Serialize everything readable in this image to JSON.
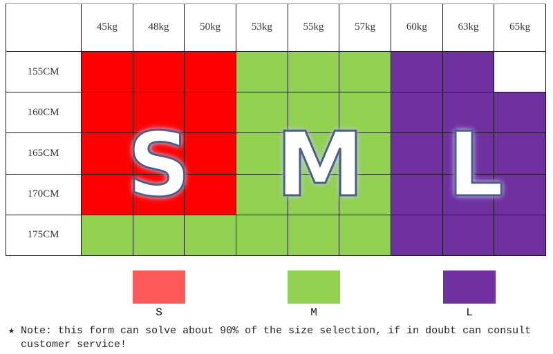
{
  "chart_data": {
    "type": "heatmap",
    "columns": [
      "45kg",
      "48kg",
      "50kg",
      "53kg",
      "55kg",
      "57kg",
      "60kg",
      "63kg",
      "65kg"
    ],
    "rows": [
      "155CM",
      "160CM",
      "165CM",
      "170CM",
      "175CM"
    ],
    "cells": [
      [
        "S",
        "S",
        "S",
        "M",
        "M",
        "M",
        "L",
        "L",
        ""
      ],
      [
        "S",
        "S",
        "S",
        "M",
        "M",
        "M",
        "L",
        "L",
        "L"
      ],
      [
        "S",
        "S",
        "S",
        "M",
        "M",
        "M",
        "L",
        "L",
        "L"
      ],
      [
        "S",
        "S",
        "S",
        "M",
        "M",
        "M",
        "L",
        "L",
        "L"
      ],
      [
        "M",
        "M",
        "M",
        "M",
        "M",
        "M",
        "L",
        "L",
        "L"
      ]
    ],
    "cell_colors": {
      "S": "#fe0000",
      "M": "#92d050",
      "L": "#7030a0",
      "": "#ffffff"
    },
    "overlay_letters": [
      "S",
      "M",
      "L"
    ],
    "legend": [
      {
        "label": "S",
        "color": "#ff5a5a"
      },
      {
        "label": "M",
        "color": "#92d050"
      },
      {
        "label": "L",
        "color": "#7030a0"
      }
    ]
  },
  "note": {
    "line1": "★ Note: this form can solve about 90% of the size selection, if in doubt can consult",
    "line2": "  customer service!"
  }
}
